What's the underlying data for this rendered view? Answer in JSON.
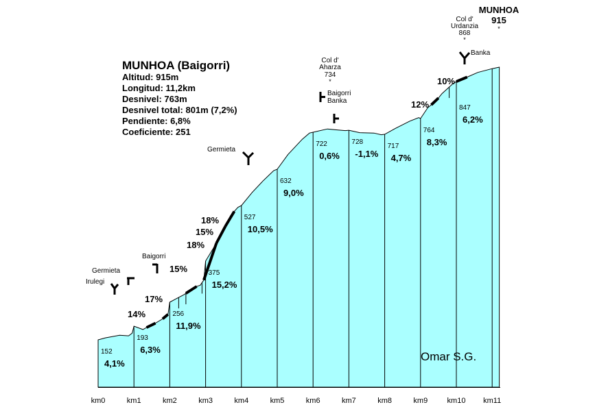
{
  "info": {
    "title": "MUNHOA (Baigorri)",
    "lines": [
      "Altitud:  915m",
      "Longitud:  11,2km",
      "Desnivel:  763m",
      "Desnivel total:  801m (7,2%)",
      "Pendiente:  6,8%",
      "Coeficiente:  251"
    ]
  },
  "summit": {
    "name": "MUNHOA",
    "altitude": "915",
    "marker": "*"
  },
  "cols": {
    "urdanzia": [
      "Col d'",
      "Urdanzia",
      "868",
      "*"
    ],
    "aharza": [
      "Col d'",
      "Aharza",
      "734",
      "*"
    ]
  },
  "junctions": {
    "banka_top": "Banka",
    "baigorri_banka": [
      "Baigorri",
      "Banka"
    ],
    "germieta_upper": "Germieta",
    "baigorri_lower": "Baigorri",
    "germieta_lower": "Germieta",
    "irulegi": "Irulegi"
  },
  "author": "Omar S.G.",
  "chart_data": {
    "type": "area",
    "x_unit": "km",
    "y_unit": "m",
    "km_labels": [
      "km0",
      "km1",
      "km2",
      "km3",
      "km4",
      "km5",
      "km6",
      "km7",
      "km8",
      "km9",
      "km10",
      "km11"
    ],
    "profile": [
      [
        0,
        152
      ],
      [
        0.2,
        158
      ],
      [
        0.6,
        166
      ],
      [
        0.85,
        164
      ],
      [
        0.95,
        172
      ],
      [
        1.0,
        193
      ],
      [
        1.25,
        183
      ],
      [
        1.4,
        192
      ],
      [
        1.55,
        198
      ],
      [
        1.8,
        212
      ],
      [
        1.95,
        224
      ],
      [
        2.0,
        256
      ],
      [
        2.4,
        278
      ],
      [
        2.7,
        300
      ],
      [
        2.85,
        305
      ],
      [
        2.95,
        320
      ],
      [
        3.0,
        375
      ],
      [
        3.4,
        440
      ],
      [
        3.7,
        500
      ],
      [
        3.9,
        522
      ],
      [
        4.0,
        527
      ],
      [
        4.3,
        565
      ],
      [
        4.6,
        598
      ],
      [
        4.9,
        628
      ],
      [
        5.0,
        632
      ],
      [
        5.3,
        668
      ],
      [
        5.7,
        705
      ],
      [
        5.9,
        720
      ],
      [
        6.0,
        722
      ],
      [
        6.4,
        732
      ],
      [
        6.7,
        729
      ],
      [
        6.9,
        727
      ],
      [
        7.0,
        728
      ],
      [
        7.3,
        721
      ],
      [
        7.7,
        720
      ],
      [
        7.9,
        716
      ],
      [
        8.0,
        717
      ],
      [
        8.3,
        734
      ],
      [
        8.7,
        756
      ],
      [
        8.95,
        766
      ],
      [
        9.0,
        764
      ],
      [
        9.2,
        788
      ],
      [
        9.45,
        805
      ],
      [
        9.6,
        820
      ],
      [
        9.9,
        842
      ],
      [
        10.0,
        847
      ],
      [
        10.3,
        868
      ],
      [
        10.6,
        890
      ],
      [
        11.0,
        908
      ],
      [
        11.2,
        915
      ]
    ],
    "segments": [
      {
        "km": 0,
        "altitude": "152",
        "gradient": "4,1%"
      },
      {
        "km": 1,
        "altitude": "193",
        "gradient": "6,3%"
      },
      {
        "km": 2,
        "altitude": "256",
        "gradient": "11,9%"
      },
      {
        "km": 3,
        "altitude": "375",
        "gradient": "15,2%"
      },
      {
        "km": 4,
        "altitude": "527",
        "gradient": "10,5%"
      },
      {
        "km": 5,
        "altitude": "632",
        "gradient": "9,0%"
      },
      {
        "km": 6,
        "altitude": "722",
        "gradient": "0,6%"
      },
      {
        "km": 7,
        "altitude": "728",
        "gradient": "-1,1%"
      },
      {
        "km": 8,
        "altitude": "717",
        "gradient": "4,7%"
      },
      {
        "km": 9,
        "altitude": "764",
        "gradient": "8,3%"
      },
      {
        "km": 10,
        "altitude": "847",
        "gradient": "6,2%"
      }
    ],
    "steep_ramps": [
      {
        "label": "14%",
        "from": 1.35,
        "to": 1.6
      },
      {
        "label": "17%",
        "from": 1.8,
        "to": 1.95
      },
      {
        "label": "15%",
        "from": 2.45,
        "to": 2.75
      },
      {
        "label": "18%",
        "from": 2.95,
        "to": 3.3
      },
      {
        "label": "15%",
        "from": 3.3,
        "to": 3.55
      },
      {
        "label": "18%",
        "from": 3.55,
        "to": 3.8
      },
      {
        "label": "12%",
        "from": 9.3,
        "to": 9.5
      },
      {
        "label": "10%",
        "from": 10.0,
        "to": 10.3
      }
    ],
    "xlim": [
      0,
      11.2
    ],
    "ylim": [
      0,
      915
    ]
  }
}
